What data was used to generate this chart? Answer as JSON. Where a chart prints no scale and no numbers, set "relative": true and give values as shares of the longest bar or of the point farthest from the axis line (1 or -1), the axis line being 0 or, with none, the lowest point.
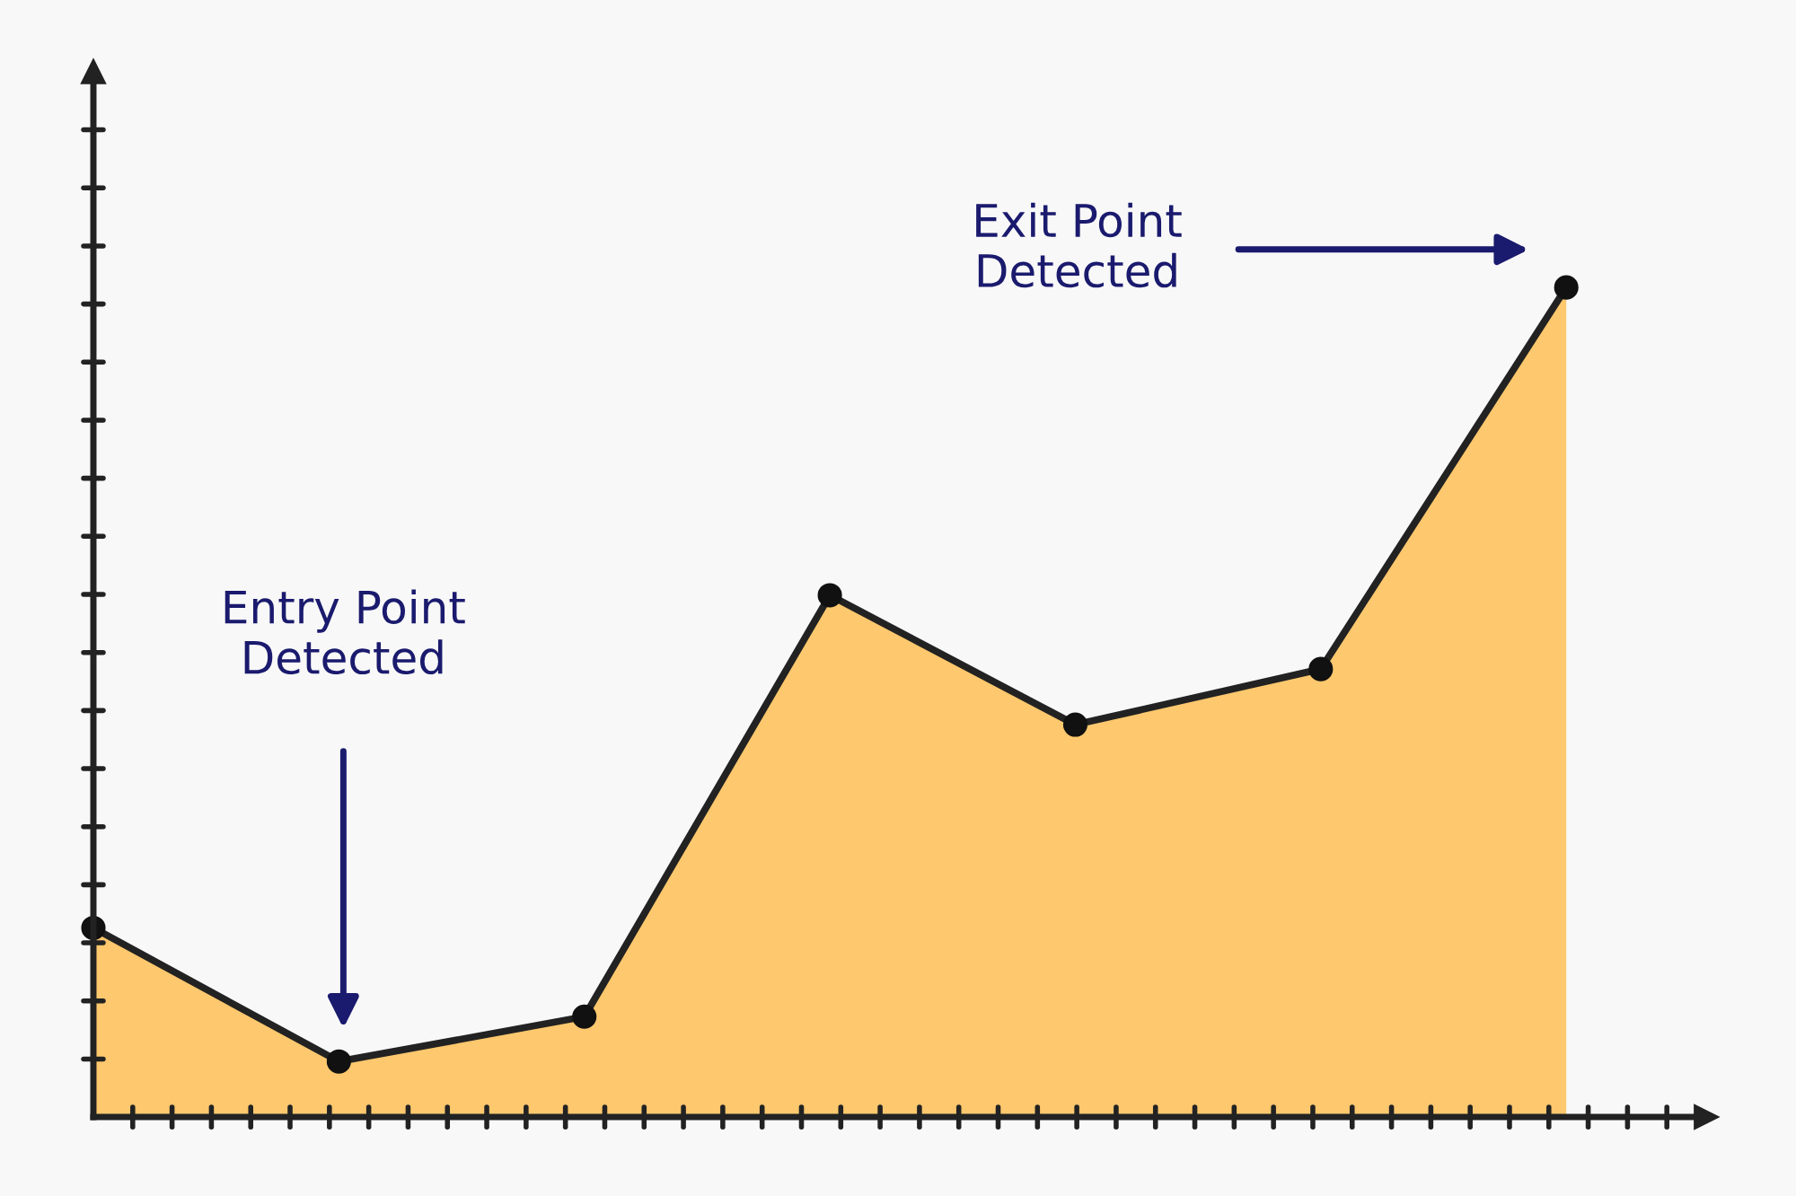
{
  "chart_data": {
    "type": "area",
    "relative": true,
    "categories": [
      null,
      null,
      null,
      null,
      null,
      null,
      null
    ],
    "series": [
      {
        "color": "#fdc25e",
        "values": [
          0.228,
          0.067,
          0.121,
          0.629,
          0.473,
          0.54,
          1
        ]
      }
    ],
    "marker": "circle",
    "line_style": "solid",
    "grid": false,
    "tick_labels": false,
    "annotations": [
      "Entry Point\nDetected",
      "Exit Point\nDetected"
    ]
  }
}
